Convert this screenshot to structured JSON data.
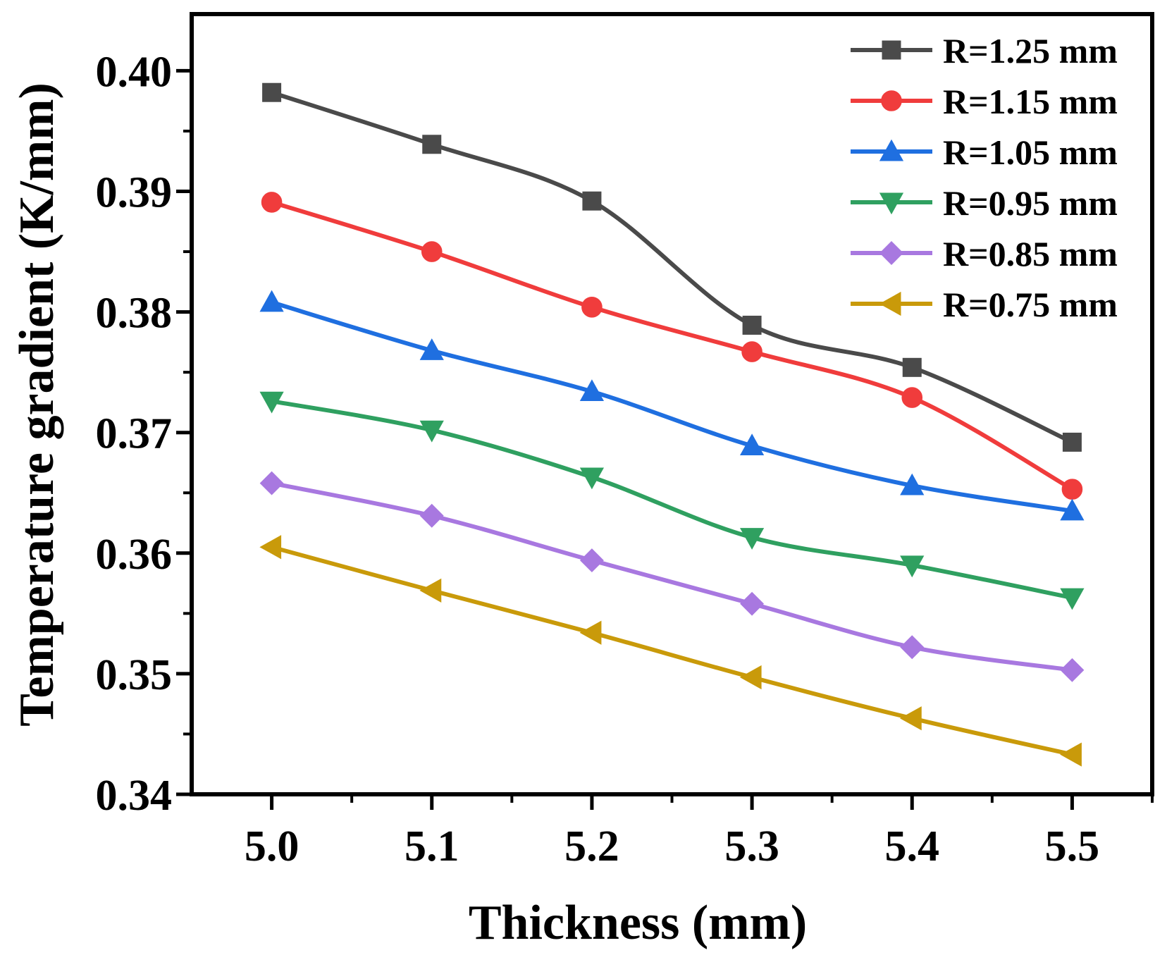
{
  "chart_data": {
    "type": "line",
    "title": "",
    "xlabel": "Thickness (mm)",
    "ylabel": "Temperature gradient (K/mm)",
    "xlim": [
      4.95,
      5.55
    ],
    "ylim": [
      0.34,
      0.4047
    ],
    "x": [
      5.0,
      5.1,
      5.2,
      5.3,
      5.4,
      5.5
    ],
    "x_ticks": [
      5.0,
      5.1,
      5.2,
      5.3,
      5.4,
      5.5
    ],
    "x_tick_labels": [
      "5.0",
      "5.1",
      "5.2",
      "5.3",
      "5.4",
      "5.5"
    ],
    "y_ticks": [
      0.34,
      0.35,
      0.36,
      0.37,
      0.38,
      0.39,
      0.4
    ],
    "y_tick_labels": [
      "0.34",
      "0.35",
      "0.36",
      "0.37",
      "0.38",
      "0.39",
      "0.40"
    ],
    "grid": false,
    "legend_position": "top-right",
    "series": [
      {
        "name": "R=1.25 mm",
        "color": "#4a4a4a",
        "marker": "square",
        "values": [
          0.3982,
          0.3939,
          0.3892,
          0.3789,
          0.3754,
          0.3692
        ]
      },
      {
        "name": "R=1.15 mm",
        "color": "#f03c3c",
        "marker": "circle",
        "values": [
          0.3891,
          0.385,
          0.3804,
          0.3767,
          0.3729,
          0.3653
        ]
      },
      {
        "name": "R=1.05 mm",
        "color": "#1f6fe0",
        "marker": "triangle-up",
        "values": [
          0.3808,
          0.3768,
          0.3734,
          0.3689,
          0.3656,
          0.3635
        ]
      },
      {
        "name": "R=0.95 mm",
        "color": "#2fa060",
        "marker": "triangle-down",
        "values": [
          0.3726,
          0.3702,
          0.3663,
          0.3613,
          0.359,
          0.3563
        ]
      },
      {
        "name": "R=0.85 mm",
        "color": "#a878e0",
        "marker": "diamond",
        "values": [
          0.3658,
          0.3631,
          0.3594,
          0.3558,
          0.3522,
          0.3503
        ]
      },
      {
        "name": "R=0.75 mm",
        "color": "#c99a0a",
        "marker": "triangle-left",
        "values": [
          0.3605,
          0.3569,
          0.3534,
          0.3497,
          0.3463,
          0.3433
        ]
      }
    ]
  }
}
